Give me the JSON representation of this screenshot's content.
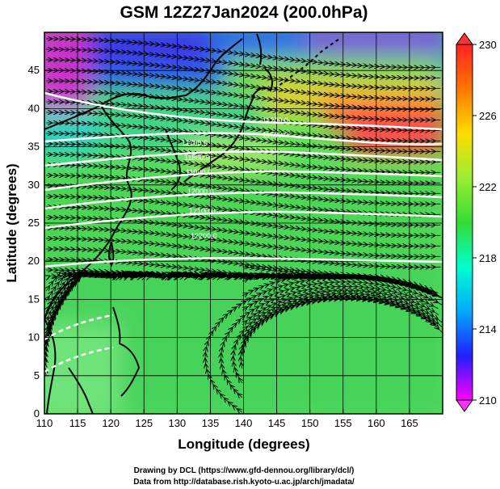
{
  "chart_data": {
    "type": "map",
    "title": "GSM 12Z27Jan2024 (200.0hPa)",
    "xlabel": "Longitude (degrees)",
    "ylabel": "Latitude  (degrees)",
    "xlim": [
      110,
      170
    ],
    "ylim": [
      0,
      50
    ],
    "x_ticks": [
      110,
      115,
      120,
      125,
      130,
      135,
      140,
      145,
      150,
      155,
      160,
      165
    ],
    "y_ticks": [
      0,
      5,
      10,
      15,
      20,
      25,
      30,
      35,
      40,
      45
    ],
    "grid": true,
    "field": "shaded temperature with streamlines and contours",
    "colorbar": {
      "min": 210,
      "max": 230,
      "ticks": [
        210,
        214,
        218,
        222,
        226,
        230
      ],
      "colors": [
        "#ff00ff",
        "#2020ff",
        "#00aaff",
        "#00ffcc",
        "#33dd33",
        "#99ee33",
        "#ffdd00",
        "#ff7700",
        "#ff2222"
      ],
      "extend": "both"
    },
    "contour_labels": [
      "11200.0",
      "11600.0",
      "11700.0",
      "11800.0",
      "11900.0",
      "12000.0",
      "12100.0",
      "12200.0"
    ],
    "colors": {
      "background": "#ffffff",
      "contour": "#ffffff",
      "streamline": "#000000",
      "coastline": "#000000",
      "grid": "#000000"
    }
  },
  "credits": {
    "line1": "Drawing by DCL (https://www.gfd-dennou.org/library/dcl/)",
    "line2": "Data from http://database.rish.kyoto-u.ac.jp/arch/jmadata/"
  }
}
